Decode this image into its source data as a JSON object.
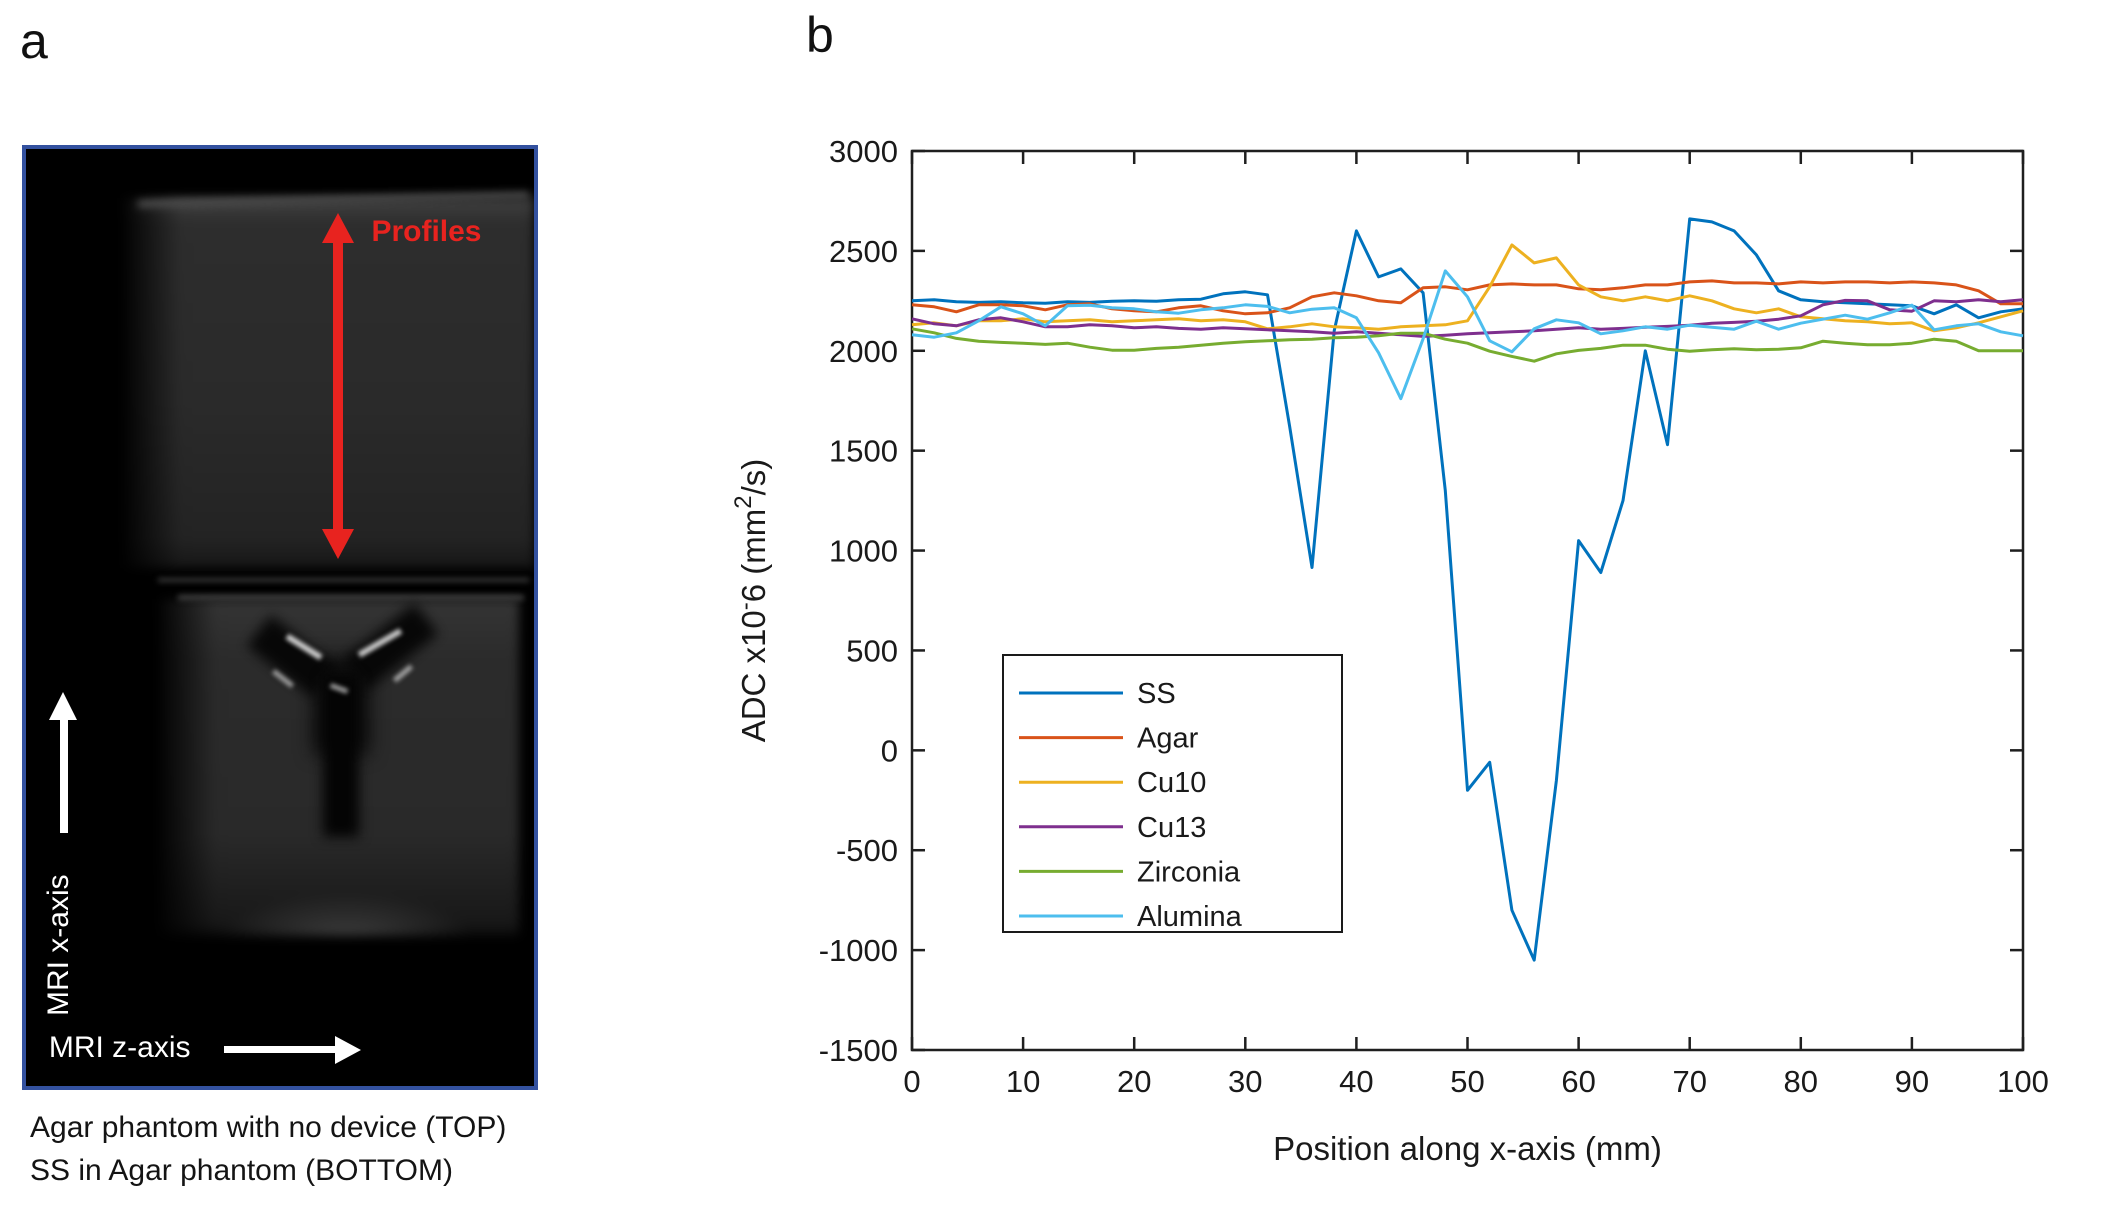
{
  "figure": {
    "panel_a_label": "a",
    "panel_b_label": "b",
    "panel_a": {
      "border_color": "#33519F",
      "arrow_color": "#E8231F",
      "annotations": {
        "profiles": "Profiles",
        "mri_x_axis": "MRI x-axis",
        "mri_z_axis": "MRI z-axis"
      },
      "caption_line1": "Agar phantom with no device (TOP)",
      "caption_line2": "SS in Agar phantom (BOTTOM)"
    }
  },
  "chart_data": {
    "type": "line",
    "title": "",
    "xlabel": "Position along x-axis (mm)",
    "ylabel": "ADC x10-6 (mm2/s)",
    "ylabel_parts": {
      "prefix": "ADC x10",
      "sup1": "-",
      "mid": "6 (mm",
      "sup2": "2",
      "suffix": "/s)"
    },
    "xlim": [
      0,
      100
    ],
    "ylim": [
      -1500,
      3000
    ],
    "xticks": [
      0,
      10,
      20,
      30,
      40,
      50,
      60,
      70,
      80,
      90,
      100
    ],
    "yticks": [
      3000,
      2500,
      2000,
      1500,
      1000,
      500,
      0,
      -500,
      -1000,
      -1500
    ],
    "grid": false,
    "legend_position": "inside-lower-left",
    "axis_color": "#1f1f1f",
    "x": [
      0,
      2,
      4,
      6,
      8,
      10,
      12,
      14,
      16,
      18,
      20,
      22,
      24,
      26,
      28,
      30,
      32,
      34,
      36,
      38,
      40,
      42,
      44,
      46,
      48,
      50,
      52,
      54,
      56,
      58,
      60,
      62,
      64,
      66,
      68,
      70,
      72,
      74,
      76,
      78,
      80,
      82,
      84,
      86,
      88,
      90,
      92,
      94,
      96,
      98,
      100
    ],
    "series": [
      {
        "name": "SS",
        "color": "#0072BD",
        "values": [
          2250,
          2255,
          2245,
          2242,
          2245,
          2240,
          2238,
          2245,
          2242,
          2248,
          2250,
          2248,
          2255,
          2258,
          2285,
          2295,
          2280,
          1620,
          915,
          2100,
          2600,
          2370,
          2410,
          2290,
          1300,
          -200,
          -60,
          -800,
          -1050,
          -150,
          1050,
          890,
          1250,
          2000,
          1530,
          2660,
          2645,
          2600,
          2480,
          2300,
          2255,
          2245,
          2240,
          2235,
          2230,
          2225,
          2185,
          2230,
          2165,
          2195,
          2210
        ]
      },
      {
        "name": "Agar",
        "color": "#D95319",
        "values": [
          2230,
          2220,
          2195,
          2230,
          2230,
          2225,
          2205,
          2230,
          2235,
          2210,
          2200,
          2195,
          2215,
          2225,
          2200,
          2185,
          2190,
          2215,
          2270,
          2290,
          2275,
          2250,
          2240,
          2315,
          2320,
          2305,
          2330,
          2335,
          2330,
          2330,
          2310,
          2305,
          2315,
          2330,
          2330,
          2345,
          2350,
          2340,
          2340,
          2335,
          2345,
          2340,
          2345,
          2345,
          2340,
          2345,
          2340,
          2330,
          2300,
          2235,
          2235
        ]
      },
      {
        "name": "Cu10",
        "color": "#EDB120",
        "values": [
          2130,
          2140,
          2125,
          2150,
          2150,
          2160,
          2145,
          2150,
          2155,
          2145,
          2150,
          2155,
          2160,
          2150,
          2155,
          2145,
          2110,
          2120,
          2135,
          2120,
          2115,
          2108,
          2120,
          2125,
          2130,
          2150,
          2320,
          2530,
          2440,
          2465,
          2330,
          2270,
          2250,
          2270,
          2250,
          2275,
          2250,
          2210,
          2190,
          2210,
          2170,
          2160,
          2150,
          2145,
          2135,
          2140,
          2100,
          2115,
          2140,
          2170,
          2200
        ]
      },
      {
        "name": "Cu13",
        "color": "#7E2F8E",
        "values": [
          2160,
          2135,
          2125,
          2155,
          2165,
          2145,
          2120,
          2120,
          2130,
          2125,
          2115,
          2120,
          2112,
          2108,
          2115,
          2110,
          2105,
          2100,
          2095,
          2088,
          2095,
          2088,
          2080,
          2072,
          2078,
          2085,
          2090,
          2095,
          2100,
          2108,
          2115,
          2108,
          2112,
          2118,
          2122,
          2128,
          2138,
          2142,
          2148,
          2158,
          2175,
          2230,
          2252,
          2250,
          2205,
          2198,
          2250,
          2245,
          2255,
          2245,
          2255
        ]
      },
      {
        "name": "Zirconia",
        "color": "#77AC30",
        "values": [
          2110,
          2090,
          2062,
          2048,
          2042,
          2038,
          2032,
          2038,
          2018,
          2003,
          2003,
          2012,
          2018,
          2028,
          2038,
          2045,
          2050,
          2055,
          2058,
          2065,
          2068,
          2075,
          2088,
          2088,
          2058,
          2038,
          1998,
          1972,
          1948,
          1985,
          2002,
          2012,
          2028,
          2028,
          2008,
          1998,
          2005,
          2010,
          2005,
          2008,
          2015,
          2048,
          2038,
          2030,
          2030,
          2038,
          2058,
          2048,
          2000,
          2000,
          2000
        ]
      },
      {
        "name": "Alumina",
        "color": "#4DBEEE",
        "values": [
          2080,
          2068,
          2090,
          2150,
          2220,
          2185,
          2125,
          2225,
          2228,
          2215,
          2210,
          2195,
          2188,
          2205,
          2215,
          2230,
          2222,
          2190,
          2208,
          2215,
          2165,
          1990,
          1760,
          2060,
          2400,
          2270,
          2050,
          1995,
          2110,
          2155,
          2140,
          2085,
          2100,
          2120,
          2108,
          2128,
          2118,
          2108,
          2148,
          2108,
          2138,
          2158,
          2178,
          2158,
          2190,
          2228,
          2105,
          2125,
          2135,
          2095,
          2075
        ]
      }
    ]
  }
}
